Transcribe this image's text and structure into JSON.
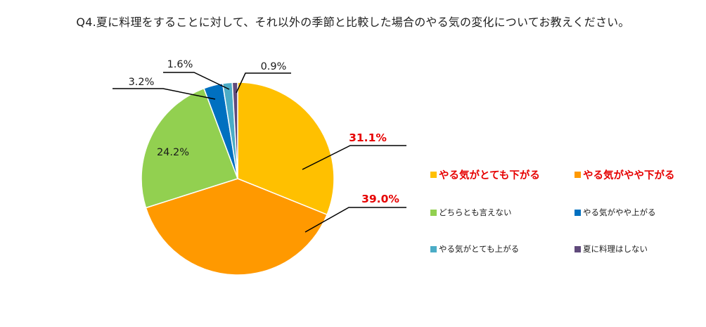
{
  "chart_data": {
    "type": "pie",
    "title": "Q4.夏に料理をすることに対して、それ以外の季節と比較した場合のやる気の変化についてお教えください。",
    "start_angle_deg": 0,
    "direction": "clockwise",
    "slices": [
      {
        "label": "やる気がとても下がる",
        "value": 31.1,
        "value_label": "31.1%",
        "color": "#FFC000",
        "highlight": true
      },
      {
        "label": "やる気がやや下がる",
        "value": 39.0,
        "value_label": "39.0%",
        "color": "#FF9900",
        "highlight": true
      },
      {
        "label": "どちらとも言えない",
        "value": 24.2,
        "value_label": "24.2%",
        "color": "#92D050",
        "highlight": false
      },
      {
        "label": "やる気がやや上がる",
        "value": 3.2,
        "value_label": "3.2%",
        "color": "#0070C0",
        "highlight": false
      },
      {
        "label": "やる気がとても上がる",
        "value": 1.6,
        "value_label": "1.6%",
        "color": "#4BACC6",
        "highlight": false
      },
      {
        "label": "夏に料理はしない",
        "value": 0.9,
        "value_label": "0.9%",
        "color": "#604A7B",
        "highlight": false
      }
    ],
    "legend_position": "right",
    "highlight_color": "#E60000"
  }
}
